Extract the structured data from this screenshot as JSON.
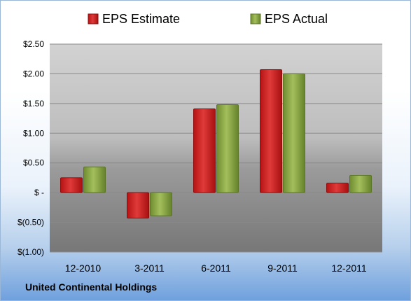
{
  "company": "United Continental Holdings",
  "chart_data": {
    "type": "bar",
    "categories": [
      "12-2010",
      "3-2011",
      "6-2011",
      "9-2011",
      "12-2011"
    ],
    "series": [
      {
        "name": "EPS Estimate",
        "color": "#cc1f1f",
        "values": [
          0.25,
          -0.43,
          1.41,
          2.07,
          0.16
        ]
      },
      {
        "name": "EPS Actual",
        "color": "#8aa843",
        "values": [
          0.43,
          -0.39,
          1.48,
          2.0,
          0.29
        ]
      }
    ],
    "ylim": [
      -1.0,
      2.5
    ],
    "yticks": [
      2.5,
      2.0,
      1.5,
      1.0,
      0.5,
      0,
      -0.5,
      -1.0
    ],
    "ytick_labels": [
      "$2.50",
      "$2.00",
      "$1.50",
      "$1.00",
      "$0.50",
      "$ -",
      "$(0.50)",
      "$(1.00)"
    ],
    "grid": true,
    "legend": "top"
  }
}
